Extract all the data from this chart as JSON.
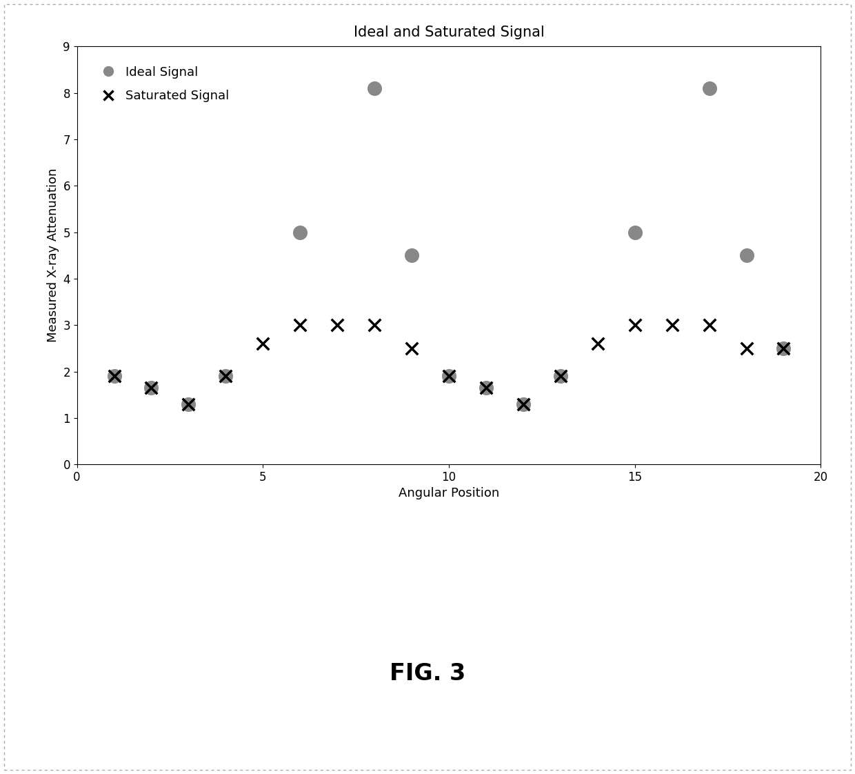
{
  "title": "Ideal and Saturated Signal",
  "xlabel": "Angular Position",
  "ylabel": "Measured X-ray Attenuation",
  "xlim": [
    0,
    20
  ],
  "ylim": [
    0,
    9
  ],
  "xticks": [
    0,
    5,
    10,
    15,
    20
  ],
  "yticks": [
    0,
    1,
    2,
    3,
    4,
    5,
    6,
    7,
    8,
    9
  ],
  "ideal_x": [
    1,
    2,
    3,
    4,
    6,
    8,
    9,
    10,
    11,
    12,
    13,
    15,
    17,
    18,
    19
  ],
  "ideal_y": [
    1.9,
    1.65,
    1.3,
    1.9,
    5.0,
    8.1,
    4.5,
    1.9,
    1.65,
    1.3,
    1.9,
    5.0,
    8.1,
    4.5,
    2.5
  ],
  "saturated_x": [
    1,
    2,
    3,
    4,
    5,
    6,
    7,
    8,
    9,
    10,
    11,
    12,
    13,
    14,
    15,
    16,
    17,
    18,
    19
  ],
  "saturated_y": [
    1.9,
    1.65,
    1.3,
    1.9,
    2.6,
    3.0,
    3.0,
    3.0,
    2.5,
    1.9,
    1.65,
    1.3,
    1.9,
    2.6,
    3.0,
    3.0,
    3.0,
    2.5,
    2.5
  ],
  "ideal_color": "#888888",
  "saturated_color": "#000000",
  "background_color": "#ffffff",
  "fig_facecolor": "#ffffff",
  "title_fontsize": 15,
  "label_fontsize": 13,
  "tick_fontsize": 12,
  "legend_fontsize": 13,
  "fig_caption": "FIG. 3",
  "caption_fontsize": 24
}
